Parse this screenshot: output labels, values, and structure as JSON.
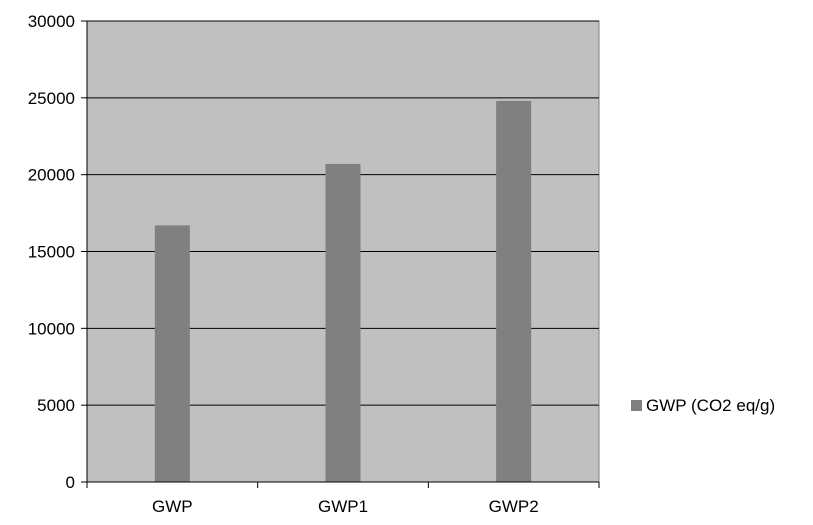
{
  "chart_data": {
    "type": "bar",
    "categories": [
      "GWP",
      "GWP1",
      "GWP2"
    ],
    "series": [
      {
        "name": "GWP (CO2 eq/g)",
        "values": [
          16700,
          20700,
          24800
        ]
      }
    ],
    "ylim": [
      0,
      30000
    ],
    "yticks": [
      0,
      5000,
      10000,
      15000,
      20000,
      25000,
      30000
    ],
    "grid": true,
    "legend": "right",
    "colors": {
      "plot_background": "#c0c0c0",
      "bar": "#808080",
      "gridline": "#000000"
    }
  }
}
